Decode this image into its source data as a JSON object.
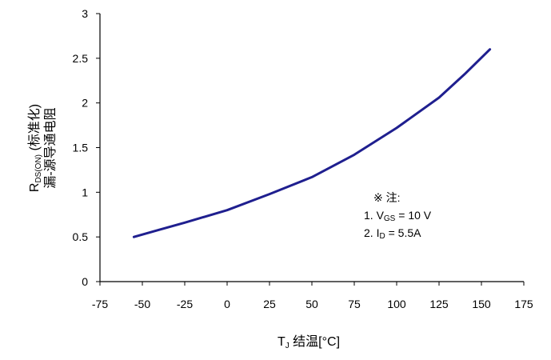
{
  "chart_data": {
    "type": "line",
    "title": "",
    "xlabel": {
      "main": "T",
      "sub": "J",
      "rest": " 结温[°C]"
    },
    "ylabel": {
      "line1": {
        "main": "R",
        "sub": "DS(ON)",
        "rest": " (标准化)"
      },
      "line2": "漏-源导通电阻"
    },
    "xlim": [
      -75,
      175
    ],
    "ylim": [
      0,
      3
    ],
    "x_ticks": [
      "-75",
      "-50",
      "-25",
      "0",
      "25",
      "50",
      "75",
      "100",
      "125",
      "150",
      "175"
    ],
    "y_ticks": [
      "0",
      "0.5",
      "1",
      "1.5",
      "2",
      "2.5",
      "3"
    ],
    "grid": false,
    "legend": "none",
    "series": [
      {
        "color": "#1f1f8f",
        "x": [
          -55,
          -40,
          -25,
          0,
          25,
          50,
          75,
          100,
          125,
          140,
          155
        ],
        "y": [
          0.5,
          0.58,
          0.66,
          0.8,
          0.98,
          1.17,
          1.42,
          1.72,
          2.06,
          2.32,
          2.6
        ]
      }
    ],
    "annotation": {
      "header": "※ 注:",
      "lines": [
        {
          "prefix": "1. V",
          "sub": "GS",
          "rest": " = 10 V"
        },
        {
          "prefix": "2. I",
          "sub": "D",
          "rest": " = 5.5A"
        }
      ]
    }
  }
}
